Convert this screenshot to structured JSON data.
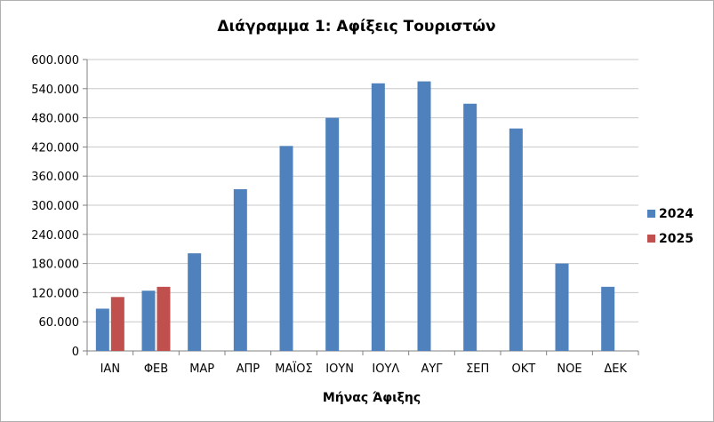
{
  "chart_data": {
    "type": "bar",
    "title": "Διάγραμμα 1: Αφίξεις Τουριστών",
    "xlabel": "Μήνας Άφιξης",
    "ylabel": "",
    "ylim": [
      0,
      600000
    ],
    "yticks": [
      0,
      60000,
      120000,
      180000,
      240000,
      300000,
      360000,
      420000,
      480000,
      540000,
      600000
    ],
    "ytick_labels": [
      "0",
      "60.000",
      "120.000",
      "180.000",
      "240.000",
      "300.000",
      "360.000",
      "420.000",
      "480.000",
      "540.000",
      "600.000"
    ],
    "categories": [
      "ΙΑΝ",
      "ΦΕΒ",
      "ΜΑΡ",
      "ΑΠΡ",
      "ΜΑΪΟΣ",
      "ΙΟΥΝ",
      "ΙΟΥΛ",
      "ΑΥΓ",
      "ΣΕΠ",
      "ΟΚΤ",
      "ΝΟΕ",
      "ΔΕΚ"
    ],
    "series": [
      {
        "name": "2024",
        "color": "#4f81bd",
        "values": [
          87000,
          124000,
          201000,
          333000,
          422000,
          480000,
          551000,
          555000,
          509000,
          458000,
          180000,
          132000
        ]
      },
      {
        "name": "2025",
        "color": "#c0504d",
        "values": [
          111000,
          132000,
          null,
          null,
          null,
          null,
          null,
          null,
          null,
          null,
          null,
          null
        ]
      }
    ],
    "grid": true,
    "legend": "right"
  }
}
